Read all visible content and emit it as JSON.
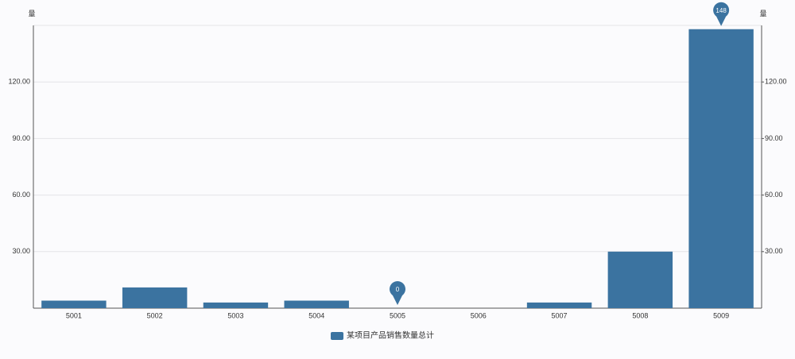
{
  "chart_data": {
    "type": "bar",
    "y_axis_label": "量",
    "y2_axis_label": "量",
    "categories": [
      "5001",
      "5002",
      "5003",
      "5004",
      "5005",
      "5006",
      "5007",
      "5008",
      "5009"
    ],
    "series": [
      {
        "name": "某项目产品销售数量总计",
        "color": "#3b73a0",
        "values": [
          4,
          11,
          3,
          4,
          0,
          0,
          3,
          30,
          148
        ]
      }
    ],
    "ylim": [
      0,
      150
    ],
    "yticks": [
      {
        "value": 30,
        "label": "30.00"
      },
      {
        "value": 60,
        "label": "60.00"
      },
      {
        "value": 90,
        "label": "90.00"
      },
      {
        "value": 120,
        "label": "120.00"
      }
    ],
    "y2lim": [
      0,
      150
    ],
    "y2ticks": [
      {
        "value": 30,
        "label": "30.00"
      },
      {
        "value": 60,
        "label": "60.00"
      },
      {
        "value": 90,
        "label": "90.00"
      },
      {
        "value": 120,
        "label": "120.00"
      }
    ],
    "grid": true,
    "legend": "bottom"
  }
}
